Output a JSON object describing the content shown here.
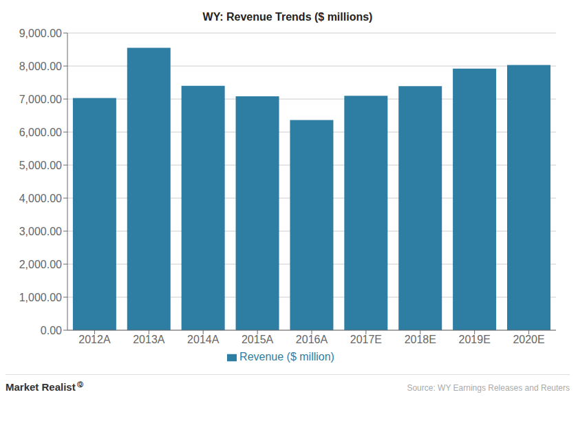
{
  "chart_data": {
    "type": "bar",
    "title": "WY: Revenue  Trends ($ millions)",
    "categories": [
      "2012A",
      "2013A",
      "2014A",
      "2015A",
      "2016A",
      "2017E",
      "2018E",
      "2019E",
      "2020E"
    ],
    "series": [
      {
        "name": "Revenue ($ million)",
        "color": "#2E7DA3",
        "values": [
          7030,
          8554,
          7403,
          7082,
          6365,
          7100,
          7390,
          7920,
          8030
        ]
      }
    ],
    "ylim": [
      0,
      9000
    ],
    "yticks": [
      {
        "value": 0,
        "label": "0.00"
      },
      {
        "value": 1000,
        "label": "1,000.00"
      },
      {
        "value": 2000,
        "label": "2,000.00"
      },
      {
        "value": 3000,
        "label": "3,000.00"
      },
      {
        "value": 4000,
        "label": "4,000.00"
      },
      {
        "value": 5000,
        "label": "5,000.00"
      },
      {
        "value": 6000,
        "label": "6,000.00"
      },
      {
        "value": 7000,
        "label": "7,000.00"
      },
      {
        "value": 8000,
        "label": "8,000.00"
      },
      {
        "value": 9000,
        "label": "9,000.00"
      }
    ],
    "grid": true,
    "legend": "bottom",
    "annotations": [
      "Market Realist",
      "Ⓠ",
      "Source: WY Earnings Releases and Reuters"
    ]
  }
}
